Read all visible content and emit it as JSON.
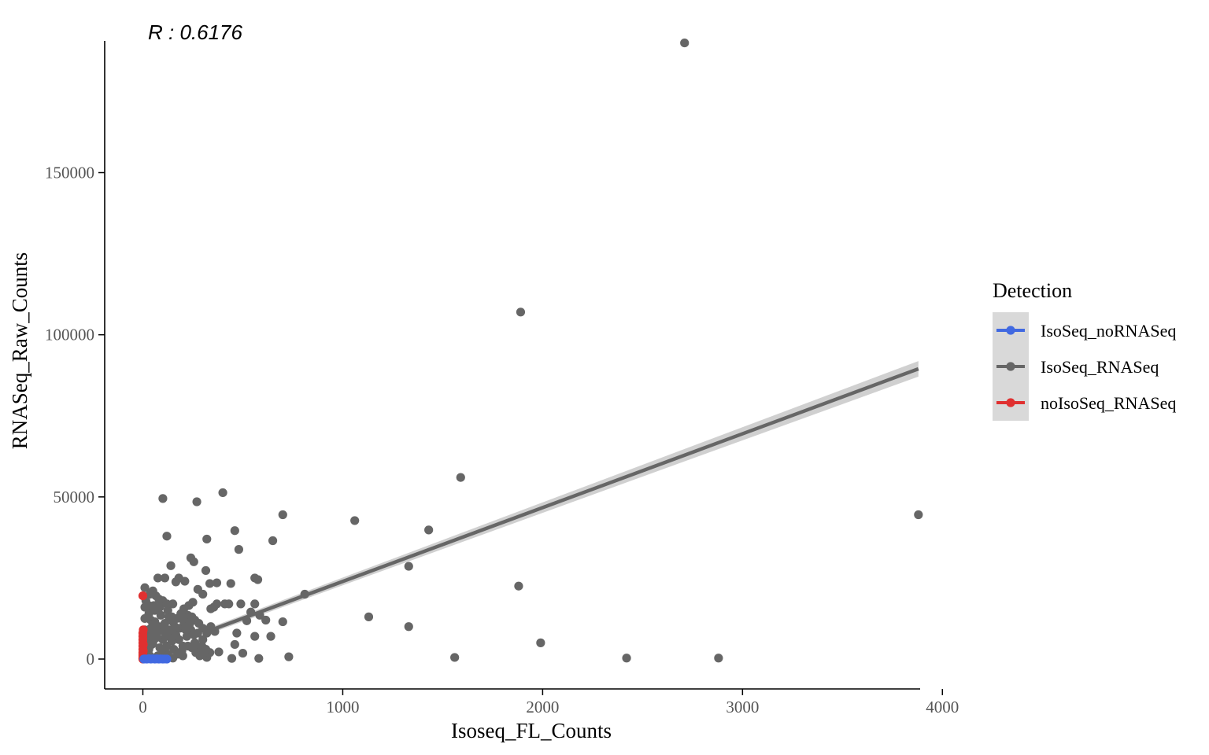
{
  "chart_data": {
    "type": "scatter",
    "annotation": "R :  0.6176",
    "xlabel": "Isoseq_FL_Counts",
    "ylabel": "RNASeq_Raw_Counts",
    "xlim": [
      -20,
      4000
    ],
    "ylim": [
      -8000,
      190000
    ],
    "x_ticks": [
      0,
      1000,
      2000,
      3000,
      4000
    ],
    "y_ticks": [
      0,
      50000,
      100000,
      150000
    ],
    "legend": {
      "title": "Detection",
      "placement": "right",
      "entries": [
        "IsoSeq_noRNASeq",
        "IsoSeq_RNASeq",
        "noIsoSeq_RNASeq"
      ]
    },
    "series": [
      {
        "name": "IsoSeq_noRNASeq",
        "color": "#4169e1",
        "points": [
          [
            5,
            0
          ],
          [
            20,
            0
          ],
          [
            40,
            0
          ],
          [
            60,
            0
          ],
          [
            80,
            0
          ],
          [
            100,
            0
          ],
          [
            120,
            0
          ],
          [
            10,
            50
          ],
          [
            30,
            100
          ],
          [
            50,
            80
          ],
          [
            70,
            60
          ],
          [
            90,
            40
          ],
          [
            110,
            20
          ]
        ]
      },
      {
        "name": "IsoSeq_RNASeq",
        "color": "#666666",
        "points": [
          [
            2710,
            190000
          ],
          [
            1890,
            107000
          ],
          [
            1590,
            56000
          ],
          [
            100,
            49500
          ],
          [
            270,
            48500
          ],
          [
            400,
            51300
          ],
          [
            700,
            44500
          ],
          [
            1060,
            42700
          ],
          [
            1430,
            39800
          ],
          [
            3880,
            44500
          ],
          [
            460,
            39600
          ],
          [
            120,
            37900
          ],
          [
            320,
            37000
          ],
          [
            650,
            36500
          ],
          [
            480,
            33800
          ],
          [
            240,
            31200
          ],
          [
            255,
            30000
          ],
          [
            140,
            28800
          ],
          [
            315,
            27300
          ],
          [
            1330,
            28600
          ],
          [
            75,
            25000
          ],
          [
            110,
            25000
          ],
          [
            180,
            25000
          ],
          [
            210,
            24000
          ],
          [
            165,
            23800
          ],
          [
            335,
            23300
          ],
          [
            370,
            23500
          ],
          [
            440,
            23300
          ],
          [
            560,
            25000
          ],
          [
            575,
            24500
          ],
          [
            10,
            22000
          ],
          [
            50,
            21000
          ],
          [
            275,
            21500
          ],
          [
            300,
            20000
          ],
          [
            810,
            20000
          ],
          [
            1880,
            22500
          ],
          [
            80,
            18500
          ],
          [
            100,
            18000
          ],
          [
            150,
            17000
          ],
          [
            230,
            16500
          ],
          [
            250,
            17500
          ],
          [
            370,
            17000
          ],
          [
            410,
            17000
          ],
          [
            430,
            17000
          ],
          [
            490,
            17000
          ],
          [
            560,
            17000
          ],
          [
            340,
            15500
          ],
          [
            355,
            16000
          ],
          [
            540,
            14500
          ],
          [
            585,
            13500
          ],
          [
            615,
            12000
          ],
          [
            700,
            11500
          ],
          [
            520,
            11800
          ],
          [
            1130,
            13000
          ],
          [
            1330,
            10000
          ],
          [
            640,
            7000
          ],
          [
            560,
            7000
          ],
          [
            470,
            8000
          ],
          [
            460,
            4500
          ],
          [
            1990,
            5000
          ],
          [
            380,
            2200
          ],
          [
            270,
            2000
          ],
          [
            500,
            1800
          ],
          [
            445,
            200
          ],
          [
            580,
            200
          ],
          [
            730,
            700
          ],
          [
            1560,
            500
          ],
          [
            2420,
            300
          ],
          [
            2880,
            300
          ],
          [
            320,
            500
          ],
          [
            150,
            300
          ],
          [
            200,
            1000
          ],
          [
            10,
            1000
          ],
          [
            30,
            3000
          ],
          [
            50,
            5000
          ],
          [
            70,
            7000
          ],
          [
            90,
            9000
          ],
          [
            110,
            11000
          ],
          [
            130,
            13000
          ],
          [
            20,
            8000
          ],
          [
            40,
            12000
          ],
          [
            60,
            15000
          ],
          [
            80,
            10000
          ],
          [
            100,
            6000
          ],
          [
            120,
            4000
          ],
          [
            140,
            8000
          ],
          [
            160,
            10000
          ],
          [
            180,
            6000
          ],
          [
            200,
            4000
          ],
          [
            220,
            7000
          ],
          [
            240,
            9000
          ],
          [
            260,
            5000
          ],
          [
            280,
            3000
          ],
          [
            300,
            6000
          ],
          [
            320,
            8000
          ],
          [
            25,
            2500
          ],
          [
            45,
            4500
          ],
          [
            65,
            6500
          ],
          [
            85,
            3500
          ],
          [
            105,
            2500
          ],
          [
            125,
            1500
          ],
          [
            145,
            5500
          ],
          [
            165,
            7500
          ],
          [
            185,
            9500
          ],
          [
            205,
            11500
          ],
          [
            225,
            13500
          ],
          [
            30,
            14000
          ],
          [
            55,
            16500
          ],
          [
            15,
            18000
          ],
          [
            35,
            20000
          ],
          [
            190,
            14000
          ],
          [
            210,
            12500
          ],
          [
            260,
            12000
          ],
          [
            280,
            11000
          ],
          [
            300,
            9500
          ],
          [
            340,
            10000
          ],
          [
            360,
            8500
          ],
          [
            150,
            11500
          ],
          [
            170,
            12500
          ],
          [
            90,
            13500
          ],
          [
            60,
            11500
          ],
          [
            40,
            9500
          ],
          [
            20,
            5500
          ],
          [
            15,
            3000
          ],
          [
            35,
            1000
          ],
          [
            75,
            1000
          ],
          [
            95,
            3000
          ],
          [
            115,
            7000
          ],
          [
            135,
            9000
          ],
          [
            155,
            3000
          ],
          [
            175,
            1500
          ],
          [
            195,
            2500
          ],
          [
            215,
            9000
          ],
          [
            235,
            11000
          ],
          [
            255,
            7500
          ],
          [
            275,
            8000
          ],
          [
            295,
            4000
          ],
          [
            315,
            3000
          ],
          [
            335,
            2000
          ],
          [
            65,
            19500
          ],
          [
            85,
            16000
          ],
          [
            125,
            15000
          ],
          [
            145,
            13000
          ],
          [
            205,
            15500
          ],
          [
            245,
            13000
          ],
          [
            120,
            17000
          ],
          [
            30,
            16500
          ],
          [
            50,
            10500
          ],
          [
            70,
            8500
          ],
          [
            10,
            12500
          ],
          [
            10,
            16000
          ],
          [
            10,
            9000
          ],
          [
            10,
            6500
          ],
          [
            10,
            4000
          ],
          [
            10,
            2000
          ],
          [
            45,
            7000
          ],
          [
            105,
            8500
          ],
          [
            225,
            4000
          ],
          [
            245,
            3500
          ],
          [
            265,
            2000
          ],
          [
            285,
            1000
          ],
          [
            305,
            2000
          ]
        ]
      },
      {
        "name": "noIsoSeq_RNASeq",
        "color": "#e03030",
        "points": [
          [
            0,
            19500
          ],
          [
            0,
            8000
          ],
          [
            0,
            7000
          ],
          [
            0,
            6000
          ],
          [
            0,
            5000
          ],
          [
            0,
            4000
          ],
          [
            0,
            3000
          ],
          [
            0,
            2000
          ],
          [
            0,
            1500
          ],
          [
            0,
            1000
          ],
          [
            0,
            500
          ],
          [
            0,
            200
          ],
          [
            0,
            0
          ],
          [
            2,
            9000
          ],
          [
            2,
            4500
          ],
          [
            2,
            2500
          ],
          [
            2,
            300
          ]
        ]
      }
    ],
    "fit_line": {
      "series": "IsoSeq_RNASeq",
      "color": "#666666",
      "band_color": "#c8c8c8",
      "points": [
        [
          300,
          8000
        ],
        [
          3880,
          89500
        ]
      ],
      "band_halfwidth": [
        900,
        2400
      ]
    }
  }
}
